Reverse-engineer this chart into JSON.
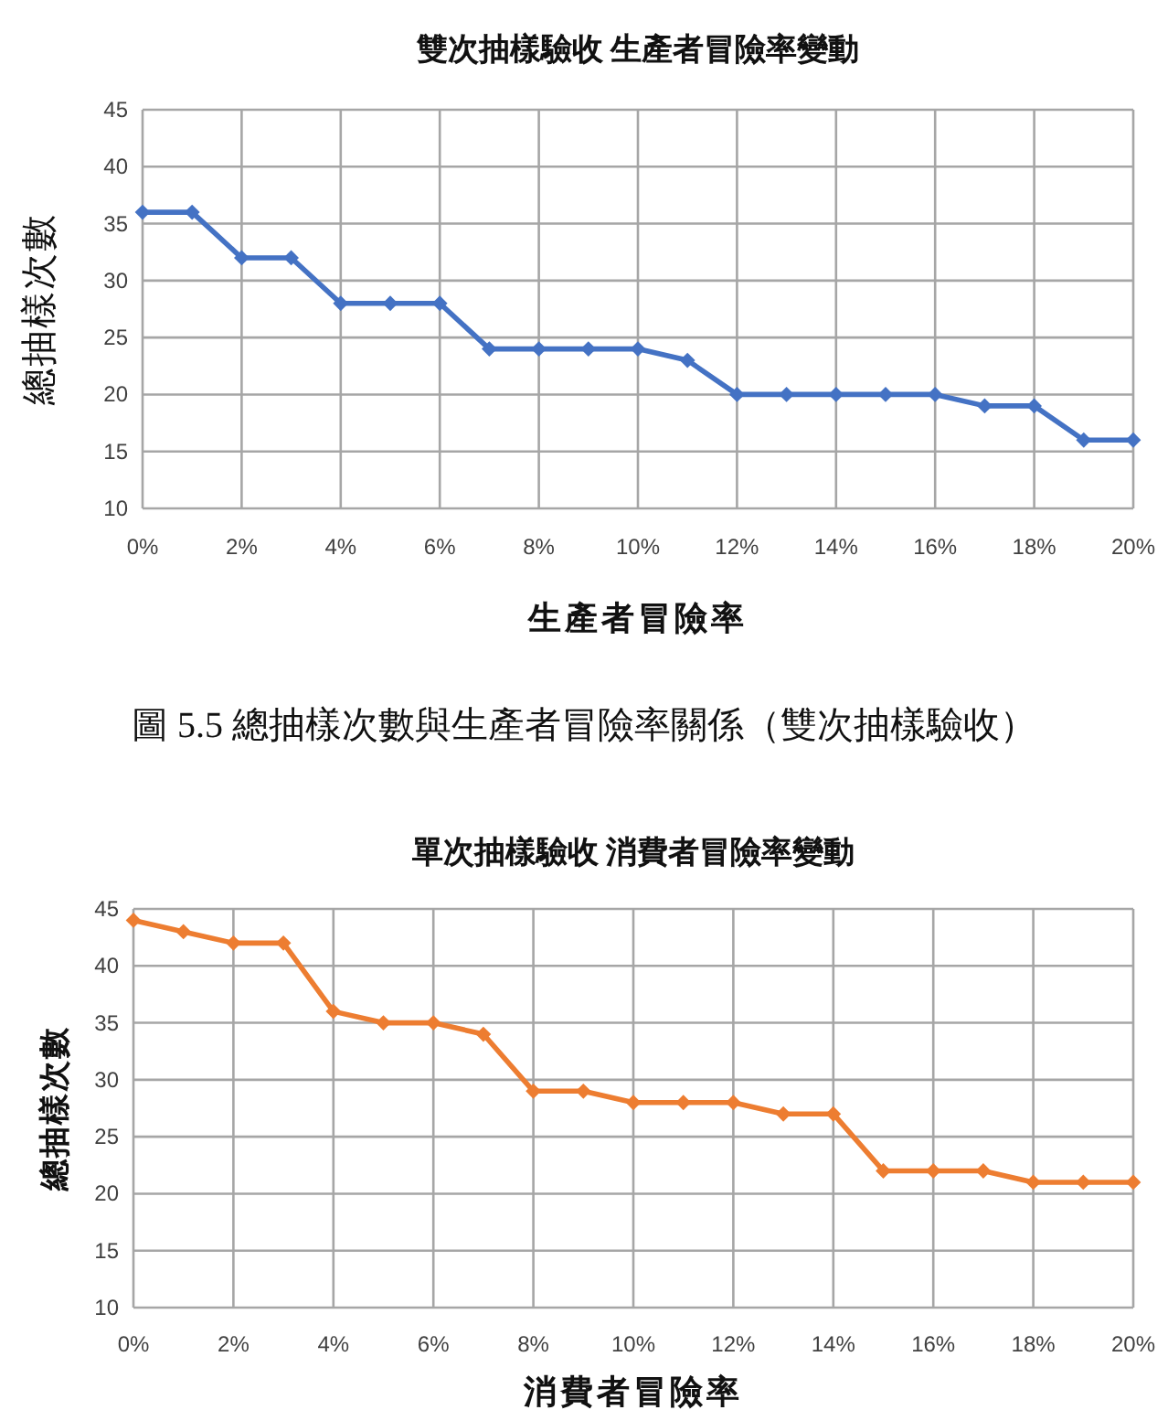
{
  "chart_data": [
    {
      "type": "line",
      "title": "雙次抽樣驗收 生產者冒險率變動",
      "xlabel": "生產者冒險率",
      "ylabel": "總抽樣次數",
      "x": [
        0,
        1,
        2,
        3,
        4,
        5,
        6,
        7,
        8,
        9,
        10,
        11,
        12,
        13,
        14,
        15,
        16,
        17,
        18,
        19,
        20
      ],
      "series": [
        {
          "color": "#4472c4",
          "values": [
            36,
            36,
            32,
            32,
            28,
            28,
            28,
            24,
            24,
            24,
            24,
            23,
            20,
            20,
            20,
            20,
            20,
            19,
            19,
            16,
            16
          ]
        }
      ],
      "xlim": [
        0,
        20
      ],
      "xticks": [
        {
          "value": 0,
          "label": "0%"
        },
        {
          "value": 2,
          "label": "2%"
        },
        {
          "value": 4,
          "label": "4%"
        },
        {
          "value": 6,
          "label": "6%"
        },
        {
          "value": 8,
          "label": "8%"
        },
        {
          "value": 10,
          "label": "10%"
        },
        {
          "value": 12,
          "label": "12%"
        },
        {
          "value": 14,
          "label": "14%"
        },
        {
          "value": 16,
          "label": "16%"
        },
        {
          "value": 18,
          "label": "18%"
        },
        {
          "value": 20,
          "label": "20%"
        }
      ],
      "ylim": [
        10,
        45
      ],
      "yticks": [
        10,
        15,
        20,
        25,
        30,
        35,
        40,
        45
      ],
      "grid": true,
      "marker": "diamond",
      "line_style": "solid",
      "annotations": [
        "圖 5.5 總抽樣次數與生產者冒險率關係（雙次抽樣驗收）"
      ]
    },
    {
      "type": "line",
      "title": "單次抽樣驗收 消費者冒險率變動",
      "xlabel": "消費者冒險率",
      "ylabel": "總抽樣次數",
      "x": [
        0,
        1,
        2,
        3,
        4,
        5,
        6,
        7,
        8,
        9,
        10,
        11,
        12,
        13,
        14,
        15,
        16,
        17,
        18,
        19,
        20
      ],
      "series": [
        {
          "color": "#ed7d31",
          "values": [
            44,
            43,
            42,
            42,
            36,
            35,
            35,
            34,
            29,
            29,
            28,
            28,
            28,
            27,
            27,
            22,
            22,
            22,
            21,
            21,
            21
          ]
        }
      ],
      "xlim": [
        0,
        20
      ],
      "xticks": [
        {
          "value": 0,
          "label": "0%"
        },
        {
          "value": 2,
          "label": "2%"
        },
        {
          "value": 4,
          "label": "4%"
        },
        {
          "value": 6,
          "label": "6%"
        },
        {
          "value": 8,
          "label": "8%"
        },
        {
          "value": 10,
          "label": "10%"
        },
        {
          "value": 12,
          "label": "12%"
        },
        {
          "value": 14,
          "label": "14%"
        },
        {
          "value": 16,
          "label": "16%"
        },
        {
          "value": 18,
          "label": "18%"
        },
        {
          "value": 20,
          "label": "20%"
        }
      ],
      "ylim": [
        10,
        45
      ],
      "yticks": [
        10,
        15,
        20,
        25,
        30,
        35,
        40,
        45
      ],
      "grid": true,
      "marker": "diamond",
      "line_style": "solid"
    }
  ]
}
